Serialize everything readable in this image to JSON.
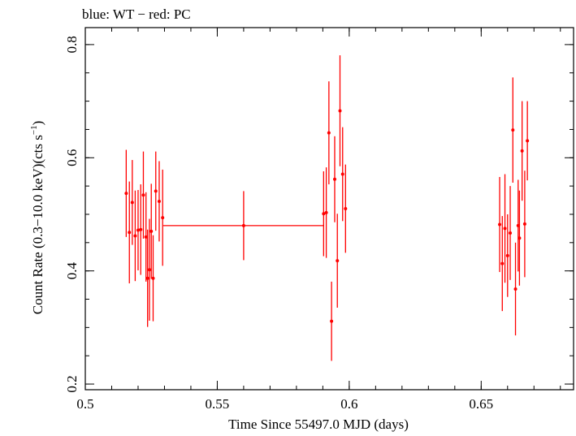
{
  "chart_data": {
    "type": "scatter",
    "title": "blue: WT − red: PC",
    "xlabel": "Time Since 55497.0 MJD (days)",
    "ylabel_main": "Count Rate (0.3−10.0 keV)(cts s",
    "ylabel_sup": "−1",
    "ylabel_close": ")",
    "xlim": [
      0.5,
      0.685
    ],
    "ylim": [
      0.19,
      0.83
    ],
    "xticks": [
      0.5,
      0.55,
      0.6,
      0.65
    ],
    "xtick_labels": [
      "0.5",
      "0.55",
      "0.6",
      "0.65"
    ],
    "yticks": [
      0.2,
      0.4,
      0.6,
      0.8
    ],
    "ytick_labels": [
      "0.2",
      "0.4",
      "0.6",
      "0.8"
    ],
    "x_minor_step": 0.01,
    "y_minor_step": 0.05,
    "grid": false,
    "series": [
      {
        "color": "#ff0000",
        "points": [
          {
            "x": 0.5155,
            "y": 0.537,
            "yerr": 0.077
          },
          {
            "x": 0.5167,
            "y": 0.468,
            "yerr": 0.09
          },
          {
            "x": 0.5178,
            "y": 0.521,
            "yerr": 0.075
          },
          {
            "x": 0.5189,
            "y": 0.462,
            "yerr": 0.08
          },
          {
            "x": 0.52,
            "y": 0.472,
            "yerr": 0.071
          },
          {
            "x": 0.521,
            "y": 0.473,
            "yerr": 0.08
          },
          {
            "x": 0.522,
            "y": 0.534,
            "yerr": 0.077
          },
          {
            "x": 0.523,
            "y": 0.46,
            "yerr": 0.079
          },
          {
            "x": 0.5236,
            "y": 0.387,
            "yerr": 0.086
          },
          {
            "x": 0.5243,
            "y": 0.402,
            "yerr": 0.09
          },
          {
            "x": 0.525,
            "y": 0.47,
            "yerr": 0.084
          },
          {
            "x": 0.5257,
            "y": 0.387,
            "yerr": 0.076
          },
          {
            "x": 0.5267,
            "y": 0.541,
            "yerr": 0.07
          },
          {
            "x": 0.528,
            "y": 0.523,
            "yerr": 0.071
          },
          {
            "x": 0.5293,
            "y": 0.494,
            "yerr": 0.085
          },
          {
            "x": 0.56,
            "y": 0.48,
            "yerr": 0.061,
            "xerr": 0.0305
          },
          {
            "x": 0.5903,
            "y": 0.501,
            "yerr": 0.075
          },
          {
            "x": 0.5913,
            "y": 0.503,
            "yerr": 0.08
          },
          {
            "x": 0.5923,
            "y": 0.644,
            "yerr": 0.091
          },
          {
            "x": 0.5933,
            "y": 0.311,
            "yerr": 0.07
          },
          {
            "x": 0.5945,
            "y": 0.562,
            "yerr": 0.076
          },
          {
            "x": 0.5955,
            "y": 0.418,
            "yerr": 0.083
          },
          {
            "x": 0.5965,
            "y": 0.683,
            "yerr": 0.098
          },
          {
            "x": 0.5975,
            "y": 0.571,
            "yerr": 0.083
          },
          {
            "x": 0.5986,
            "y": 0.51,
            "yerr": 0.078
          },
          {
            "x": 0.657,
            "y": 0.482,
            "yerr": 0.084
          },
          {
            "x": 0.658,
            "y": 0.413,
            "yerr": 0.084
          },
          {
            "x": 0.659,
            "y": 0.475,
            "yerr": 0.096
          },
          {
            "x": 0.66,
            "y": 0.427,
            "yerr": 0.073
          },
          {
            "x": 0.661,
            "y": 0.467,
            "yerr": 0.083
          },
          {
            "x": 0.662,
            "y": 0.649,
            "yerr": 0.093
          },
          {
            "x": 0.663,
            "y": 0.368,
            "yerr": 0.082
          },
          {
            "x": 0.664,
            "y": 0.48,
            "yerr": 0.081
          },
          {
            "x": 0.6645,
            "y": 0.458,
            "yerr": 0.084
          },
          {
            "x": 0.6655,
            "y": 0.612,
            "yerr": 0.088
          },
          {
            "x": 0.6665,
            "y": 0.483,
            "yerr": 0.094
          },
          {
            "x": 0.6675,
            "y": 0.63,
            "yerr": 0.07
          }
        ]
      }
    ]
  }
}
